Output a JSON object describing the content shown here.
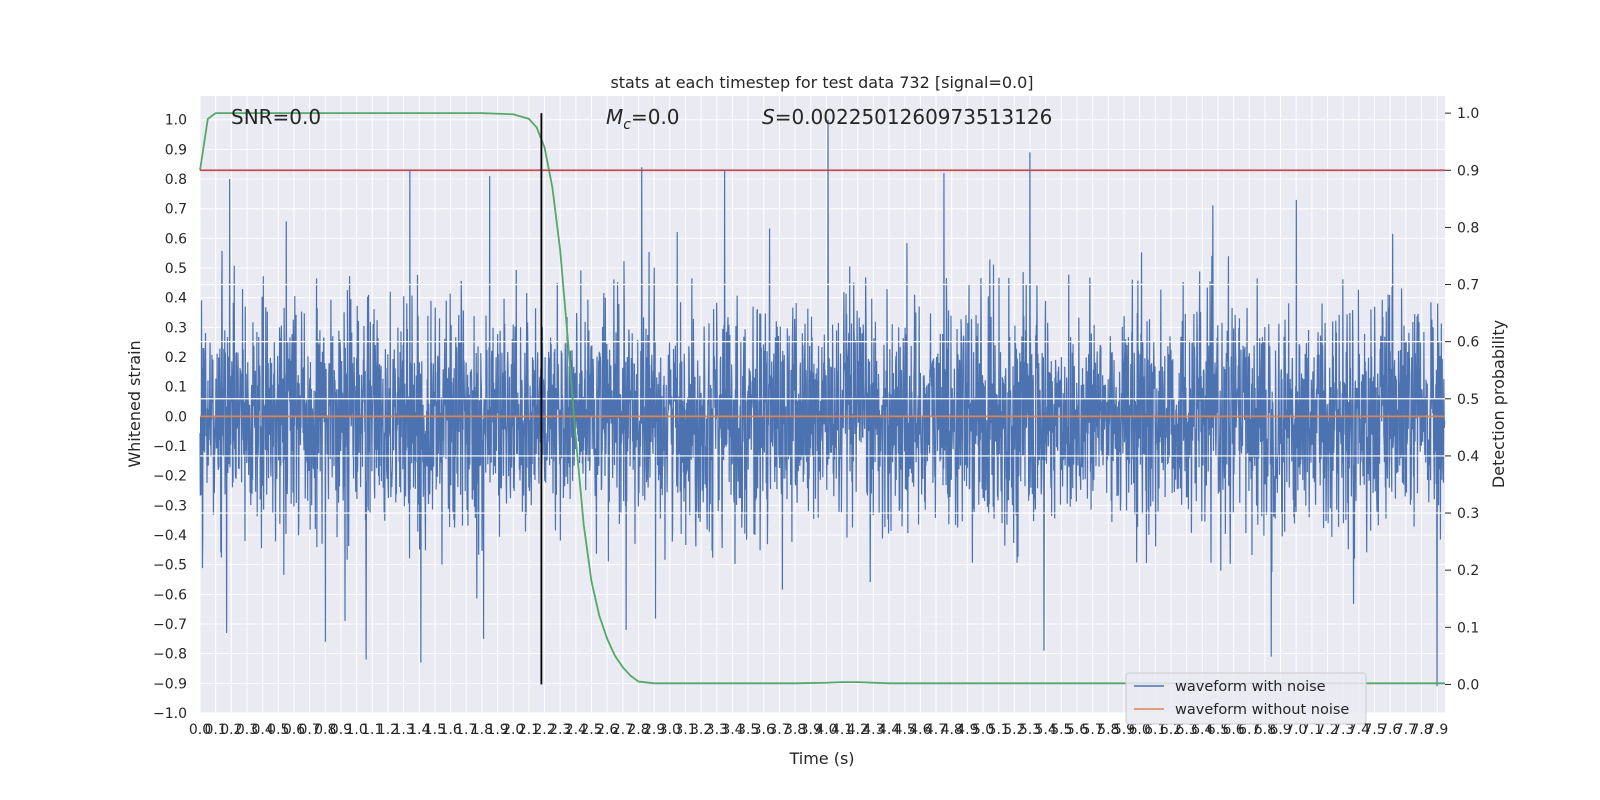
{
  "chart_data": {
    "type": "line",
    "title": "stats at each timestep for test data 732 [signal=0.0]",
    "xlabel": "Time (s)",
    "ylabel": "Whitened strain",
    "ylabel_right": "Detection probability",
    "xlim": [
      0.0,
      7.95
    ],
    "ylim": [
      -1.0,
      1.08
    ],
    "ylim_right": [
      -0.05,
      1.03
    ],
    "x_ticks": [
      0.0,
      0.1,
      0.2,
      0.3,
      0.4,
      0.5,
      0.6,
      0.7,
      0.8,
      0.9,
      1.0,
      1.1,
      1.2,
      1.3,
      1.4,
      1.5,
      1.6,
      1.7,
      1.8,
      1.9,
      2.0,
      2.1,
      2.2,
      2.3,
      2.4,
      2.5,
      2.6,
      2.7,
      2.8,
      2.9,
      3.0,
      3.1,
      3.2,
      3.3,
      3.4,
      3.5,
      3.6,
      3.7,
      3.8,
      3.9,
      4.0,
      4.1,
      4.2,
      4.3,
      4.4,
      4.5,
      4.6,
      4.7,
      4.8,
      4.9,
      5.0,
      5.1,
      5.2,
      5.3,
      5.4,
      5.5,
      5.6,
      5.7,
      5.8,
      5.9,
      6.0,
      6.1,
      6.2,
      6.3,
      6.4,
      6.5,
      6.6,
      6.7,
      6.8,
      6.9,
      7.0,
      7.1,
      7.2,
      7.3,
      7.4,
      7.5,
      7.6,
      7.7,
      7.8,
      7.9
    ],
    "x_tick_labels": [
      "0.0",
      "0.1",
      "0.2",
      "0.3",
      "0.4",
      "0.5",
      "0.6",
      "0.7",
      "0.8",
      "0.9",
      "1.0",
      "1.1",
      "1.2",
      "1.3",
      "1.4",
      "1.5",
      "1.6",
      "1.7",
      "1.8",
      "1.9",
      "2.0",
      "2.1",
      "2.2",
      "2.3",
      "2.4",
      "2.5",
      "2.6",
      "2.7",
      "2.8",
      "2.9",
      "3.0",
      "3.1",
      "3.2",
      "3.3",
      "3.4",
      "3.5",
      "3.6",
      "3.7",
      "3.8",
      "3.9",
      "4.0",
      "4.1",
      "4.2",
      "4.3",
      "4.4",
      "4.5",
      "4.6",
      "4.7",
      "4.8",
      "4.9",
      "5.0",
      "5.1",
      "5.2",
      "5.3",
      "5.4",
      "5.5",
      "5.6",
      "5.7",
      "5.8",
      "5.9",
      "6.0",
      "6.1",
      "6.2",
      "6.3",
      "6.4",
      "6.5",
      "6.6",
      "6.7",
      "6.8",
      "6.9",
      "7.0",
      "7.1",
      "7.2",
      "7.3",
      "7.4",
      "7.5",
      "7.6",
      "7.7",
      "7.8",
      "7.9"
    ],
    "y_ticks": [
      -1.0,
      -0.9,
      -0.8,
      -0.7,
      -0.6,
      -0.5,
      -0.4,
      -0.3,
      -0.2,
      -0.1,
      0.0,
      0.1,
      0.2,
      0.3,
      0.4,
      0.5,
      0.6,
      0.7,
      0.8,
      0.9,
      1.0
    ],
    "y_tick_labels": [
      "−1.0",
      "−0.9",
      "−0.8",
      "−0.7",
      "−0.6",
      "−0.5",
      "−0.4",
      "−0.3",
      "−0.2",
      "−0.1",
      "0.0",
      "0.1",
      "0.2",
      "0.3",
      "0.4",
      "0.5",
      "0.6",
      "0.7",
      "0.8",
      "0.9",
      "1.0"
    ],
    "y_ticks_right": [
      0.0,
      0.1,
      0.2,
      0.3,
      0.4,
      0.5,
      0.6,
      0.7,
      0.8,
      0.9,
      1.0
    ],
    "y_tick_labels_right": [
      "0.0",
      "0.1",
      "0.2",
      "0.3",
      "0.4",
      "0.5",
      "0.6",
      "0.7",
      "0.8",
      "0.9",
      "1.0"
    ],
    "grid": true,
    "background": "#eaeaf2",
    "legend_placement": "lower-right",
    "annotations": [
      {
        "kind": "snr",
        "text": "SNR=0.0"
      },
      {
        "kind": "chirp-mass",
        "symbol": "M",
        "subscript": "c",
        "text": "=0.0"
      },
      {
        "kind": "score",
        "symbol": "S",
        "text": "=0.0022501260973513126"
      }
    ],
    "series": [
      {
        "name": "waveform with noise",
        "color": "#4c72b0",
        "axis": "left",
        "style": "dense-noise",
        "sample_rate": 512,
        "x_range": [
          0.0,
          7.95
        ],
        "core_amplitude": 0.3,
        "peak_positive": [
          {
            "x": 0.19,
            "y": 0.8
          },
          {
            "x": 1.34,
            "y": 0.83
          },
          {
            "x": 1.85,
            "y": 0.81
          },
          {
            "x": 2.82,
            "y": 0.84
          },
          {
            "x": 3.35,
            "y": 0.83
          },
          {
            "x": 4.01,
            "y": 1.0
          },
          {
            "x": 4.75,
            "y": 0.82
          },
          {
            "x": 5.3,
            "y": 0.89
          },
          {
            "x": 7.0,
            "y": 0.73
          }
        ],
        "peak_negative": [
          {
            "x": 0.17,
            "y": -0.73
          },
          {
            "x": 0.8,
            "y": -0.76
          },
          {
            "x": 1.06,
            "y": -0.82
          },
          {
            "x": 1.41,
            "y": -0.83
          },
          {
            "x": 1.81,
            "y": -0.75
          },
          {
            "x": 2.72,
            "y": -0.72
          },
          {
            "x": 5.39,
            "y": -0.79
          },
          {
            "x": 6.84,
            "y": -0.81
          },
          {
            "x": 7.9,
            "y": -0.91
          }
        ]
      },
      {
        "name": "waveform without noise",
        "color": "#dd8452",
        "axis": "left",
        "x": [
          0.0,
          7.95
        ],
        "y": [
          0.0,
          0.0
        ]
      },
      {
        "name": "",
        "color": "#55a868",
        "axis": "right",
        "x": [
          0.0,
          0.05,
          0.1,
          0.2,
          0.5,
          1.0,
          1.5,
          1.8,
          2.0,
          2.1,
          2.15,
          2.2,
          2.25,
          2.3,
          2.35,
          2.4,
          2.45,
          2.5,
          2.55,
          2.6,
          2.65,
          2.7,
          2.75,
          2.8,
          2.9,
          3.0,
          3.5,
          3.8,
          4.0,
          4.1,
          4.2,
          4.4,
          5.0,
          6.0,
          7.0,
          7.95
        ],
        "y": [
          0.9,
          0.99,
          1.0,
          1.0,
          1.0,
          1.0,
          1.0,
          1.0,
          0.998,
          0.99,
          0.975,
          0.94,
          0.87,
          0.76,
          0.6,
          0.43,
          0.28,
          0.18,
          0.12,
          0.08,
          0.05,
          0.03,
          0.015,
          0.005,
          0.002,
          0.002,
          0.002,
          0.002,
          0.003,
          0.004,
          0.004,
          0.002,
          0.002,
          0.002,
          0.002,
          0.002
        ]
      },
      {
        "name": "",
        "color": "#c44e52",
        "axis": "right",
        "kind": "threshold",
        "y": 0.9
      },
      {
        "name": "",
        "color": "#000000",
        "axis": "right",
        "kind": "vertical-marker",
        "x": 2.18,
        "y_range": [
          0.0,
          1.0
        ]
      }
    ]
  }
}
